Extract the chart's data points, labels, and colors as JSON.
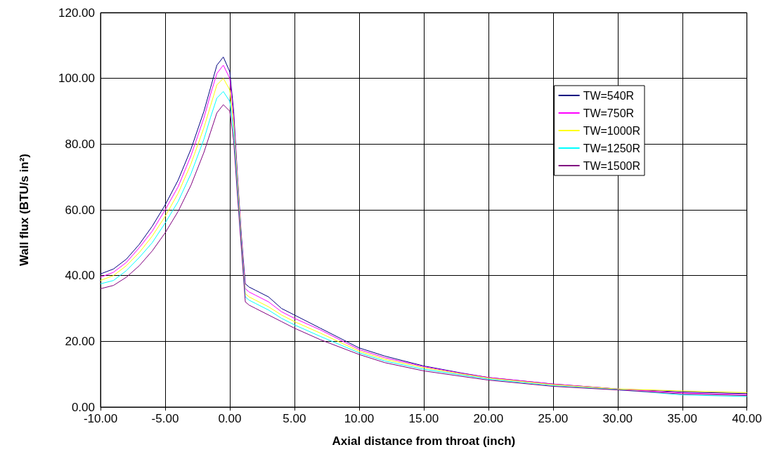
{
  "chart_data": {
    "type": "line",
    "xlabel": "Axial distance from throat (inch)",
    "ylabel": "Wall flux (BTU/s in²)",
    "x": [
      -10,
      -9,
      -8,
      -7,
      -6,
      -5,
      -4,
      -3,
      -2,
      -1.5,
      -1,
      -0.5,
      0,
      0.3,
      0.6,
      0.9,
      1.2,
      1.5,
      2,
      3,
      4,
      5,
      7,
      10,
      12,
      15,
      18,
      20,
      25,
      30,
      35,
      40
    ],
    "series": [
      {
        "name": "TW=540R",
        "color": "#000080",
        "values": [
          40.5,
          42,
          45,
          49.5,
          55,
          61.5,
          69,
          78.5,
          90,
          97,
          104,
          106.5,
          102,
          90,
          70,
          52,
          37.5,
          36.5,
          35.5,
          33.5,
          30,
          28,
          24,
          18,
          15.5,
          12.5,
          10.3,
          9,
          7,
          5.5,
          4.6,
          4.1
        ]
      },
      {
        "name": "TW=750R",
        "color": "#ff00ff",
        "values": [
          39.5,
          41,
          44,
          48.5,
          53.5,
          60,
          67,
          76.5,
          88,
          95,
          101.5,
          104,
          100,
          88,
          69,
          51,
          36,
          35,
          34,
          32,
          29,
          27,
          23.5,
          17.5,
          15,
          12.3,
          10.2,
          9,
          7,
          5.5,
          4.3,
          3.8
        ]
      },
      {
        "name": "TW=1000R",
        "color": "#ffff00",
        "values": [
          38.5,
          40,
          43,
          47,
          52,
          58,
          65,
          74,
          85,
          91.5,
          98,
          100,
          96.5,
          86,
          68,
          50,
          34.5,
          33.5,
          32.5,
          30.5,
          28,
          26,
          22.5,
          17,
          14.5,
          12,
          10,
          8.8,
          6.8,
          5.5,
          4.9,
          4.4
        ]
      },
      {
        "name": "TW=1250R",
        "color": "#00ffff",
        "values": [
          37.5,
          38.5,
          41.5,
          45.5,
          50,
          56,
          62.5,
          71,
          81.5,
          88,
          94,
          96,
          93,
          84,
          66,
          49,
          33.5,
          32.5,
          31.5,
          29.5,
          27,
          25,
          21.5,
          16.5,
          14,
          11.5,
          9.7,
          8.5,
          6.5,
          5.3,
          3.7,
          3.2
        ]
      },
      {
        "name": "TW=1500R",
        "color": "#800080",
        "values": [
          36,
          37,
          39.5,
          43,
          47.5,
          53,
          59.5,
          67.5,
          77.5,
          83.5,
          89.5,
          92,
          90,
          81,
          64,
          48,
          32,
          31,
          30,
          28,
          26,
          24,
          20.5,
          16,
          13.5,
          11,
          9.3,
          8.2,
          6.3,
          5.2,
          4.0,
          3.5
        ]
      }
    ],
    "xlim": [
      -10,
      40
    ],
    "xticks": [
      {
        "value": -10,
        "label": "-10.00"
      },
      {
        "value": -5,
        "label": "-5.00"
      },
      {
        "value": 0,
        "label": "0.00"
      },
      {
        "value": 5,
        "label": "5.00"
      },
      {
        "value": 10,
        "label": "10.00"
      },
      {
        "value": 15,
        "label": "15.00"
      },
      {
        "value": 20,
        "label": "20.00"
      },
      {
        "value": 25,
        "label": "25.00"
      },
      {
        "value": 30,
        "label": "30.00"
      },
      {
        "value": 35,
        "label": "35.00"
      },
      {
        "value": 40,
        "label": "40.00"
      }
    ],
    "ylim": [
      0,
      120
    ],
    "yticks": [
      {
        "value": 0,
        "label": "0.00"
      },
      {
        "value": 20,
        "label": "20.00"
      },
      {
        "value": 40,
        "label": "40.00"
      },
      {
        "value": 60,
        "label": "60.00"
      },
      {
        "value": 80,
        "label": "80.00"
      },
      {
        "value": 100,
        "label": "100.00"
      },
      {
        "value": 120,
        "label": "120.00"
      }
    ],
    "grid": true,
    "legend": "top right",
    "marker": "none",
    "line_style": "solid"
  }
}
